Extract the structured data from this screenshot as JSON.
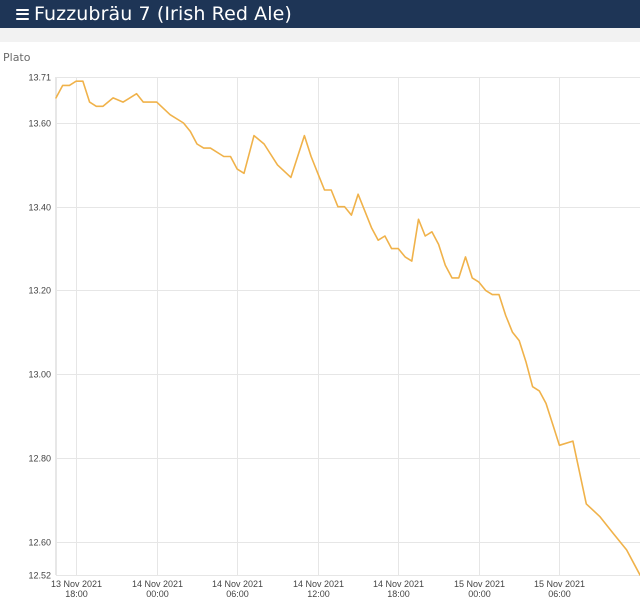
{
  "header": {
    "title": "Fuzzubräu 7 (Irish Red Ale)",
    "menu_icon": "hamburger-menu-icon"
  },
  "colors": {
    "header_bg": "#1e3556",
    "line": "#f0b24a",
    "grid": "#e6e6e6"
  },
  "chart_data": {
    "type": "line",
    "ylabel": "Plato",
    "ylim": [
      12.52,
      13.71
    ],
    "y_ticks": [
      "13.71",
      "13.60",
      "13.40",
      "13.20",
      "13.00",
      "12.80",
      "12.60",
      "12.52"
    ],
    "x_range": [
      "2021-11-13T16:30",
      "2021-11-15T12:00"
    ],
    "x_ticks": [
      {
        "t": "2021-11-13T18:00",
        "date": "13 Nov 2021",
        "time": "18:00"
      },
      {
        "t": "2021-11-14T00:00",
        "date": "14 Nov 2021",
        "time": "00:00"
      },
      {
        "t": "2021-11-14T06:00",
        "date": "14 Nov 2021",
        "time": "06:00"
      },
      {
        "t": "2021-11-14T12:00",
        "date": "14 Nov 2021",
        "time": "12:00"
      },
      {
        "t": "2021-11-14T18:00",
        "date": "14 Nov 2021",
        "time": "18:00"
      },
      {
        "t": "2021-11-15T00:00",
        "date": "15 Nov 2021",
        "time": "00:00"
      },
      {
        "t": "2021-11-15T06:00",
        "date": "15 Nov 2021",
        "time": "06:00"
      }
    ],
    "grid": true,
    "series": [
      {
        "x": [
          "2021-11-13T16:30",
          "2021-11-13T17:00",
          "2021-11-13T17:30",
          "2021-11-13T18:00",
          "2021-11-13T18:30",
          "2021-11-13T19:00",
          "2021-11-13T19:30",
          "2021-11-13T20:00",
          "2021-11-13T20:45",
          "2021-11-13T21:30",
          "2021-11-13T22:30",
          "2021-11-13T23:00",
          "2021-11-14T00:00",
          "2021-11-14T01:00",
          "2021-11-14T02:00",
          "2021-11-14T02:30",
          "2021-11-14T03:00",
          "2021-11-14T03:30",
          "2021-11-14T04:00",
          "2021-11-14T05:00",
          "2021-11-14T05:30",
          "2021-11-14T06:00",
          "2021-11-14T06:30",
          "2021-11-14T07:15",
          "2021-11-14T08:00",
          "2021-11-14T09:00",
          "2021-11-14T10:00",
          "2021-11-14T11:00",
          "2021-11-14T11:30",
          "2021-11-14T12:00",
          "2021-11-14T12:30",
          "2021-11-14T13:00",
          "2021-11-14T13:30",
          "2021-11-14T14:00",
          "2021-11-14T14:30",
          "2021-11-14T15:00",
          "2021-11-14T15:30",
          "2021-11-14T16:00",
          "2021-11-14T16:30",
          "2021-11-14T17:00",
          "2021-11-14T17:30",
          "2021-11-14T18:00",
          "2021-11-14T18:30",
          "2021-11-14T19:00",
          "2021-11-14T19:30",
          "2021-11-14T20:00",
          "2021-11-14T20:30",
          "2021-11-14T21:00",
          "2021-11-14T21:30",
          "2021-11-14T22:00",
          "2021-11-14T22:30",
          "2021-11-14T23:00",
          "2021-11-14T23:30",
          "2021-11-15T00:00",
          "2021-11-15T00:30",
          "2021-11-15T01:00",
          "2021-11-15T01:30",
          "2021-11-15T02:00",
          "2021-11-15T02:30",
          "2021-11-15T03:00",
          "2021-11-15T03:30",
          "2021-11-15T04:00",
          "2021-11-15T04:30",
          "2021-11-15T05:00",
          "2021-11-15T05:30",
          "2021-11-15T06:00",
          "2021-11-15T07:00",
          "2021-11-15T08:00",
          "2021-11-15T09:00",
          "2021-11-15T10:00",
          "2021-11-15T11:00",
          "2021-11-15T12:00"
        ],
        "y": [
          13.66,
          13.69,
          13.69,
          13.7,
          13.7,
          13.65,
          13.64,
          13.64,
          13.66,
          13.65,
          13.67,
          13.65,
          13.65,
          13.62,
          13.6,
          13.58,
          13.55,
          13.54,
          13.54,
          13.52,
          13.52,
          13.49,
          13.48,
          13.57,
          13.55,
          13.5,
          13.47,
          13.57,
          13.52,
          13.48,
          13.44,
          13.44,
          13.4,
          13.4,
          13.38,
          13.43,
          13.39,
          13.35,
          13.32,
          13.33,
          13.3,
          13.3,
          13.28,
          13.27,
          13.37,
          13.33,
          13.34,
          13.31,
          13.26,
          13.23,
          13.23,
          13.28,
          13.23,
          13.22,
          13.2,
          13.19,
          13.19,
          13.14,
          13.1,
          13.08,
          13.03,
          12.97,
          12.96,
          12.93,
          12.88,
          12.83,
          12.84,
          12.69,
          12.66,
          12.62,
          12.58,
          12.52
        ]
      }
    ]
  }
}
